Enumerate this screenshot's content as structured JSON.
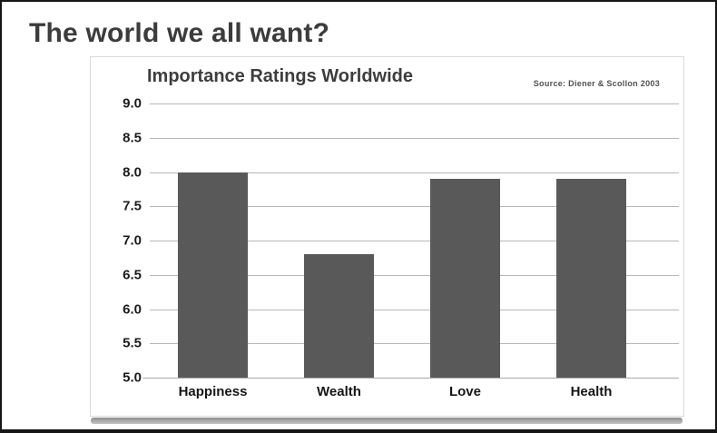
{
  "slide": {
    "title": "The world we all want?"
  },
  "chart_data": {
    "type": "bar",
    "title": "Importance Ratings Worldwide",
    "source": "Source: Diener & Scollon 2003",
    "categories": [
      "Happiness",
      "Wealth",
      "Love",
      "Health"
    ],
    "values": [
      8.0,
      6.8,
      7.9,
      7.9
    ],
    "xlabel": "",
    "ylabel": "",
    "ylim": [
      5.0,
      9.0
    ],
    "ytick_step": 0.5,
    "yticks": [
      "9.0",
      "8.5",
      "8.0",
      "7.5",
      "7.0",
      "6.5",
      "6.0",
      "5.5",
      "5.0"
    ],
    "grid": true,
    "legend": "none",
    "bar_color": "#595959",
    "gridline_color": "#b8b8b8"
  }
}
